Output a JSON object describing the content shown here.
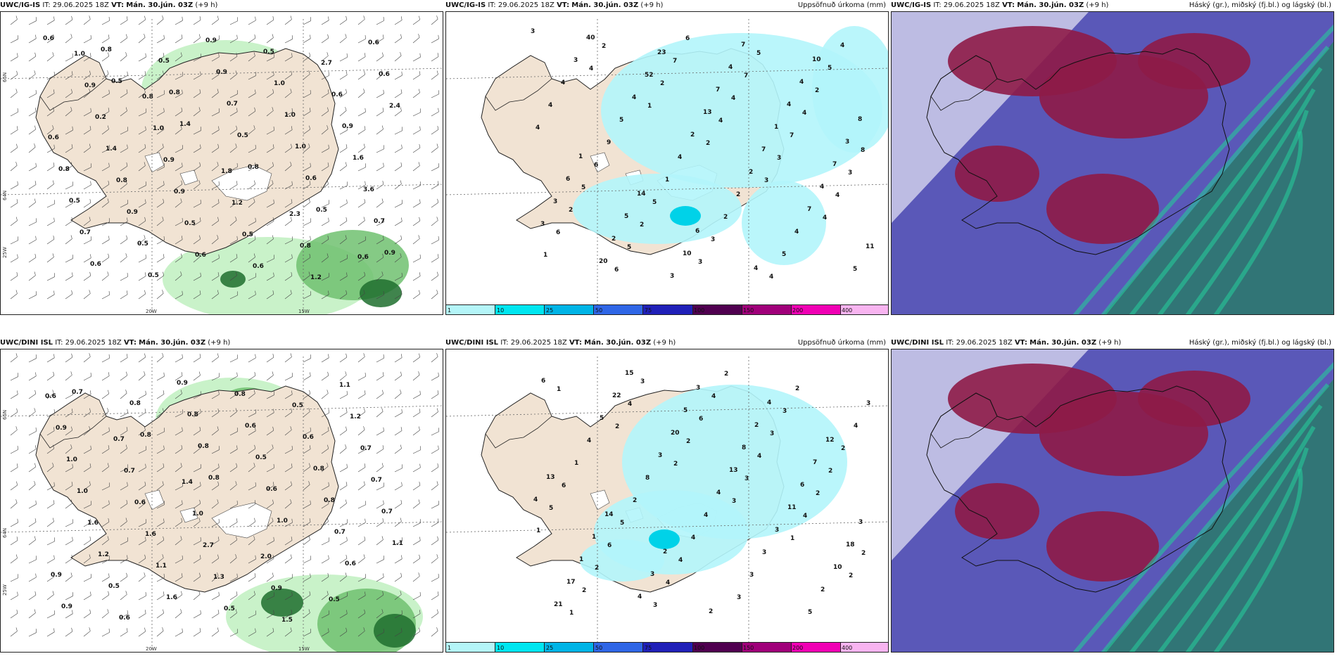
{
  "legend": {
    "ticks": [
      "1",
      "10",
      "25",
      "50",
      "75",
      "100",
      "150",
      "200",
      "400"
    ],
    "colors": [
      "#b4f5f8",
      "#00e6f0",
      "#00b4e6",
      "#2f66e6",
      "#2020b8",
      "#500050",
      "#a0007a",
      "#f000b4",
      "#f8b4f0"
    ]
  },
  "colors": {
    "land": "#f1e3d3",
    "accum_precip": "#b3f5fb",
    "light_green": "#bff0bf",
    "mid_green": "#70c170",
    "dark_green": "#1f6e2e",
    "magenta": "#d070d0",
    "cloud_high": "#8e1b47",
    "cloud_mid": "#5a58b8",
    "cloud_low": "#2a7a6a",
    "cloud_green": "#27c89a"
  },
  "rows": [
    {
      "model": "UWC/IG-IS",
      "panels": [
        {
          "run": "IT: 29.06.2025 18Z",
          "vt_label": "VT:",
          "vt_time": "Mán. 30.jún. 03Z",
          "lead": "(+9 h)",
          "field_title": "",
          "grid_labels": {
            "lat_top": "65N",
            "lat_mid": "64N",
            "lon_left": "25W",
            "lon_20": "20W",
            "lon_15": "15W"
          },
          "values": [
            "0.6",
            "0.5",
            "1.4",
            "0.8",
            "0.5",
            "0.9",
            "0.8",
            "0.8",
            "0.5",
            "0.6",
            "0.7",
            "0.6",
            "0.5",
            "0.7",
            "1.0",
            "3.6",
            "0.7",
            "0.5",
            "0.9",
            "1.0",
            "1.6",
            "0.5",
            "0.5",
            "0.9",
            "1.0",
            "0.9",
            "0.8",
            "0.9",
            "0.6",
            "0.5",
            "0.6",
            "0.6",
            "0.8",
            "0.5",
            "0.6",
            "2.7",
            "2.4",
            "1.4",
            "0.9",
            "0.5",
            "1.2",
            "0.6",
            "0.2",
            "0.9",
            "1.2",
            "0.8",
            "0.6",
            "0.9",
            "1.0",
            "1.8",
            "2.3",
            "0.6",
            "1.0",
            "0.8"
          ],
          "labels": []
        },
        {
          "run": "IT: 29.06.2025 18Z",
          "vt_label": "VT:",
          "vt_time": "Mán. 30.jún. 03Z",
          "lead": "(+9 h)",
          "field_title": "Uppsöfnuð úrkoma (mm)",
          "grid_labels": {
            "lat_top": "",
            "lat_mid": "",
            "lon_left": "",
            "lon_20": "",
            "lon_15": ""
          },
          "values": [
            "3",
            "4",
            "1",
            "2",
            "3",
            "4",
            "1",
            "2",
            "2",
            "4",
            "3",
            "4",
            "6",
            "6",
            "7",
            "4",
            "7",
            "3",
            "2",
            "5",
            "6",
            "7",
            "4",
            "8",
            "5",
            "2",
            "3",
            "5",
            "2",
            "4",
            "6",
            "5",
            "3",
            "4",
            "5",
            "4",
            "9",
            "1",
            "2",
            "5",
            "4",
            "4",
            "5",
            "4",
            "2",
            "4",
            "5",
            "3",
            "4",
            "2",
            "2",
            "7",
            "11",
            "40",
            "52",
            "13",
            "7",
            "4",
            "3",
            "20",
            "23",
            "7",
            "1",
            "7",
            "3",
            "2",
            "3",
            "4",
            "4",
            "3",
            "6",
            "5",
            "10",
            "7",
            "4",
            "8",
            "1",
            "14",
            "6",
            "4",
            "10"
          ],
          "labels": []
        },
        {
          "run": "IT: 29.06.2025 18Z",
          "vt_label": "VT:",
          "vt_time": "Mán. 30.jún. 03Z",
          "lead": "(+9 h)",
          "field_title": "Háský (gr.), miðský (fj.bl.) og lágský (bl.)",
          "grid_labels": {
            "lat_top": "",
            "lat_mid": "",
            "lon_left": "",
            "lon_20": "",
            "lon_15": ""
          },
          "values": [],
          "labels": []
        }
      ]
    },
    {
      "model": "UWC/DINI ISL",
      "panels": [
        {
          "run": "IT: 29.06.2025 18Z",
          "vt_label": "VT:",
          "vt_time": "Mán. 30.jún. 03Z",
          "lead": "(+9 h)",
          "field_title": "",
          "grid_labels": {
            "lat_top": "65N",
            "lat_mid": "64N",
            "lon_left": "25W",
            "lon_20": "20W",
            "lon_15": "15W"
          },
          "values": [
            "0.7",
            "0.8",
            "0.8",
            "1.0",
            "0.6",
            "0.9",
            "0.8",
            "0.8",
            "0.6",
            "0.7",
            "0.9",
            "0.6",
            "0.8",
            "0.5",
            "0.8",
            "1.1",
            "0.5",
            "0.9",
            "0.6",
            "0.8",
            "0.7",
            "1.2",
            "1.6",
            "0.8",
            "0.6",
            "0.7",
            "1.6",
            "1.1",
            "0.5",
            "0.5",
            "0.7",
            "1.0",
            "1.6",
            "1.3",
            "1.5",
            "1.2",
            "1.0",
            "0.6",
            "2.7",
            "0.9",
            "1.1",
            "0.9",
            "0.7",
            "1.0",
            "2.0",
            "0.5",
            "0.6",
            "0.7",
            "1.4"
          ],
          "labels": []
        },
        {
          "run": "IT: 29.06.2025 18Z",
          "vt_label": "VT:",
          "vt_time": "Mán. 30.jún. 03Z",
          "lead": "(+9 h)",
          "field_title": "Uppsöfnuð úrkoma (mm)",
          "grid_labels": {
            "lat_top": "",
            "lat_mid": "",
            "lon_left": "",
            "lon_20": "",
            "lon_15": ""
          },
          "values": [
            "1",
            "2",
            "2",
            "3",
            "1",
            "2",
            "1",
            "4",
            "2",
            "3",
            "4",
            "2",
            "2",
            "3",
            "6",
            "4",
            "2",
            "1",
            "2",
            "3",
            "4",
            "3",
            "2",
            "5",
            "6",
            "4",
            "2",
            "3",
            "2",
            "6",
            "5",
            "4",
            "3",
            "2",
            "4",
            "1",
            "2",
            "4",
            "3",
            "5",
            "3",
            "4",
            "8",
            "4",
            "3",
            "2",
            "6",
            "5",
            "3",
            "4",
            "3",
            "10",
            "21",
            "22",
            "20",
            "13",
            "11",
            "18",
            "17",
            "15",
            "5",
            "8",
            "6",
            "3",
            "1",
            "4",
            "3",
            "2",
            "7",
            "4",
            "1",
            "3",
            "2",
            "4",
            "12",
            "13",
            "14",
            "2"
          ],
          "labels": []
        },
        {
          "run": "IT: 29.06.2025 18Z",
          "vt_label": "VT:",
          "vt_time": "Mán. 30.jún. 03Z",
          "lead": "(+9 h)",
          "field_title": "Háský (gr.), miðský (fj.bl.) og lágský (bl.)",
          "grid_labels": {
            "lat_top": "",
            "lat_mid": "",
            "lon_left": "",
            "lon_20": "",
            "lon_15": ""
          },
          "values": [],
          "labels": []
        }
      ]
    }
  ]
}
